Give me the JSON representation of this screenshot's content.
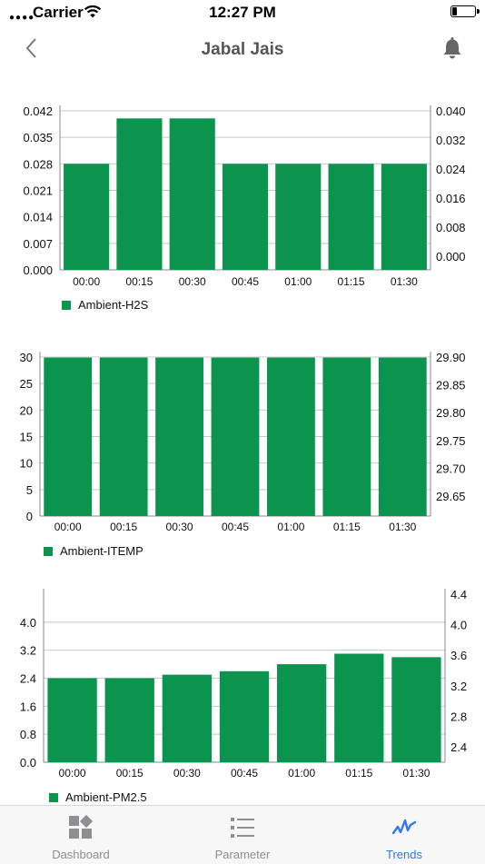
{
  "status_bar": {
    "carrier": "Carrier",
    "time": "12:27 PM"
  },
  "header": {
    "title": "Jabal Jais"
  },
  "icons": {
    "back": "chevron-left-icon",
    "bell": "bell-icon"
  },
  "colors": {
    "bar": "#0b944e",
    "grid": "#c8c8c8",
    "tab_active": "#2f7ae5",
    "tab_inactive": "#8e8e93"
  },
  "chart_data": [
    {
      "type": "bar",
      "categories": [
        "00:00",
        "00:15",
        "00:30",
        "00:45",
        "01:00",
        "01:15",
        "01:30"
      ],
      "series": [
        {
          "name": "Ambient-H2S",
          "values": [
            0.028,
            0.04,
            0.04,
            0.028,
            0.028,
            0.028,
            0.028
          ]
        }
      ],
      "left_ticks": [
        "0.042",
        "0.035",
        "0.028",
        "0.021",
        "0.014",
        "0.007",
        "0.000"
      ],
      "right_ticks": [
        "0.040",
        "0.032",
        "0.024",
        "0.016",
        "0.008",
        "0.000"
      ],
      "ylim": [
        0,
        0.042
      ],
      "legend": "bottom-left"
    },
    {
      "type": "bar",
      "categories": [
        "00:00",
        "00:15",
        "00:30",
        "00:45",
        "01:00",
        "01:15",
        "01:30"
      ],
      "series": [
        {
          "name": "Ambient-ITEMP",
          "values": [
            29.9,
            29.9,
            29.9,
            29.9,
            29.9,
            29.9,
            29.9
          ]
        }
      ],
      "left_ticks": [
        "30",
        "25",
        "20",
        "15",
        "10",
        "5",
        "0"
      ],
      "right_ticks": [
        "29.90",
        "29.85",
        "29.80",
        "29.75",
        "29.70",
        "29.65"
      ],
      "ylim": [
        0,
        30
      ],
      "legend": "bottom-left"
    },
    {
      "type": "bar",
      "categories": [
        "00:00",
        "00:15",
        "00:30",
        "00:45",
        "01:00",
        "01:15",
        "01:30"
      ],
      "series": [
        {
          "name": "Ambient-PM2.5",
          "values": [
            2.4,
            2.4,
            2.5,
            2.6,
            2.8,
            3.1,
            3.0
          ]
        }
      ],
      "left_ticks": [
        "4.0",
        "3.2",
        "2.4",
        "1.6",
        "0.8",
        "0.0"
      ],
      "right_ticks": [
        "4.4",
        "4.0",
        "3.6",
        "3.2",
        "2.8",
        "2.4"
      ],
      "ylim": [
        0,
        4.8
      ],
      "legend": "bottom-left"
    }
  ],
  "tabs": [
    {
      "label": "Dashboard",
      "icon": "dashboard-icon",
      "active": false
    },
    {
      "label": "Parameter",
      "icon": "list-icon",
      "active": false
    },
    {
      "label": "Trends",
      "icon": "trends-icon",
      "active": true
    }
  ]
}
